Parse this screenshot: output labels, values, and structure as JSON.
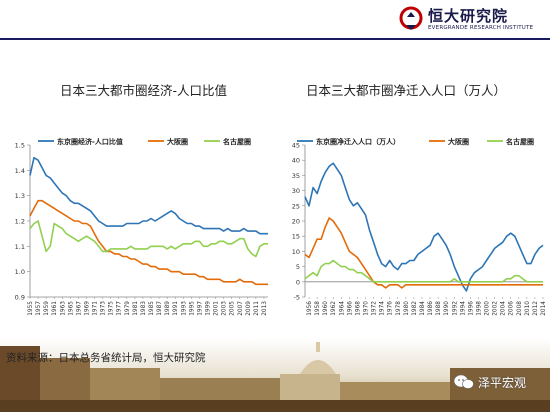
{
  "header": {
    "logo_cn": "恒大研究院",
    "logo_en": "EVERGRANDE RESEARCH INSTITUTE",
    "rule_color": "#1a1a5e"
  },
  "source_text": "资料来源：日本总务省统计局，恒大研究院",
  "watermark_text": "泽平宏观",
  "chart_data": [
    {
      "type": "line",
      "title": "日本三大都市圈经济-人口比值",
      "x": [
        1955,
        1956,
        1957,
        1958,
        1959,
        1960,
        1961,
        1962,
        1963,
        1964,
        1965,
        1966,
        1967,
        1968,
        1969,
        1970,
        1971,
        1972,
        1973,
        1974,
        1975,
        1976,
        1977,
        1978,
        1979,
        1980,
        1981,
        1982,
        1983,
        1984,
        1985,
        1986,
        1987,
        1988,
        1989,
        1990,
        1991,
        1992,
        1993,
        1994,
        1995,
        1996,
        1997,
        1998,
        1999,
        2000,
        2001,
        2002,
        2003,
        2004,
        2005,
        2006,
        2007,
        2008,
        2009,
        2010,
        2011,
        2012,
        2013,
        2014
      ],
      "xticks": [
        "1955",
        "1957",
        "1959",
        "1961",
        "1963",
        "1965",
        "1967",
        "1969",
        "1971",
        "1973",
        "1975",
        "1977",
        "1979",
        "1981",
        "1983",
        "1985",
        "1987",
        "1989",
        "1991",
        "1993",
        "1995",
        "1997",
        "1999",
        "2001",
        "2003",
        "2005",
        "2007",
        "2009",
        "2011",
        "2013"
      ],
      "yticks": [
        "0.9",
        "1.0",
        "1.1",
        "1.2",
        "1.3",
        "1.4",
        "1.5"
      ],
      "ylim": [
        0.9,
        1.5
      ],
      "grid": false,
      "legend": "top",
      "series": [
        {
          "name": "东京圈经济-人口比值",
          "color": "#2e75b6",
          "values": [
            1.38,
            1.45,
            1.44,
            1.41,
            1.38,
            1.37,
            1.35,
            1.33,
            1.31,
            1.3,
            1.28,
            1.27,
            1.27,
            1.26,
            1.25,
            1.24,
            1.22,
            1.2,
            1.19,
            1.18,
            1.18,
            1.18,
            1.18,
            1.18,
            1.19,
            1.19,
            1.19,
            1.19,
            1.2,
            1.2,
            1.21,
            1.2,
            1.21,
            1.22,
            1.23,
            1.24,
            1.23,
            1.21,
            1.2,
            1.19,
            1.19,
            1.18,
            1.18,
            1.17,
            1.17,
            1.17,
            1.17,
            1.17,
            1.16,
            1.17,
            1.16,
            1.16,
            1.16,
            1.17,
            1.16,
            1.16,
            1.16,
            1.15,
            1.15,
            1.15
          ]
        },
        {
          "name": "大阪圈",
          "color": "#e36c0a",
          "values": [
            1.22,
            1.25,
            1.28,
            1.28,
            1.27,
            1.26,
            1.25,
            1.24,
            1.23,
            1.22,
            1.21,
            1.2,
            1.2,
            1.19,
            1.19,
            1.18,
            1.15,
            1.12,
            1.1,
            1.08,
            1.08,
            1.07,
            1.07,
            1.06,
            1.06,
            1.05,
            1.05,
            1.04,
            1.03,
            1.03,
            1.02,
            1.02,
            1.01,
            1.01,
            1.01,
            1.0,
            1.0,
            1.0,
            0.99,
            0.99,
            0.99,
            0.99,
            0.98,
            0.98,
            0.97,
            0.97,
            0.97,
            0.97,
            0.96,
            0.96,
            0.96,
            0.96,
            0.97,
            0.96,
            0.96,
            0.96,
            0.95,
            0.95,
            0.95,
            0.95
          ]
        },
        {
          "name": "名古屋圈",
          "color": "#92d050",
          "values": [
            1.17,
            1.19,
            1.2,
            1.14,
            1.08,
            1.1,
            1.19,
            1.18,
            1.17,
            1.15,
            1.14,
            1.13,
            1.12,
            1.13,
            1.14,
            1.13,
            1.12,
            1.1,
            1.08,
            1.08,
            1.09,
            1.09,
            1.09,
            1.09,
            1.09,
            1.1,
            1.09,
            1.09,
            1.09,
            1.09,
            1.1,
            1.1,
            1.1,
            1.1,
            1.09,
            1.1,
            1.09,
            1.1,
            1.11,
            1.11,
            1.11,
            1.12,
            1.12,
            1.1,
            1.1,
            1.11,
            1.11,
            1.12,
            1.12,
            1.11,
            1.11,
            1.12,
            1.13,
            1.13,
            1.09,
            1.07,
            1.06,
            1.1,
            1.11,
            1.11
          ]
        }
      ]
    },
    {
      "type": "line",
      "title": "日本三大都市圈净迁入人口（万人）",
      "x": [
        1955,
        1956,
        1957,
        1958,
        1959,
        1960,
        1961,
        1962,
        1963,
        1964,
        1965,
        1966,
        1967,
        1968,
        1969,
        1970,
        1971,
        1972,
        1973,
        1974,
        1975,
        1976,
        1977,
        1978,
        1979,
        1980,
        1981,
        1982,
        1983,
        1984,
        1985,
        1986,
        1987,
        1988,
        1989,
        1990,
        1991,
        1992,
        1993,
        1994,
        1995,
        1996,
        1997,
        1998,
        1999,
        2000,
        2001,
        2002,
        2003,
        2004,
        2005,
        2006,
        2007,
        2008,
        2009,
        2010,
        2011,
        2012,
        2013,
        2014
      ],
      "xticks": [
        "1956",
        "1958",
        "1960",
        "1962",
        "1964",
        "1966",
        "1968",
        "1970",
        "1972",
        "1974",
        "1976",
        "1978",
        "1980",
        "1982",
        "1984",
        "1986",
        "1988",
        "1990",
        "1992",
        "1994",
        "1996",
        "1998",
        "2000",
        "2002",
        "2004",
        "2006",
        "2008",
        "2010",
        "2012",
        "2014"
      ],
      "yticks": [
        "-5",
        "0",
        "5",
        "10",
        "15",
        "20",
        "25",
        "30",
        "35",
        "40",
        "45"
      ],
      "ylim": [
        -5,
        45
      ],
      "grid": false,
      "legend": "top",
      "series": [
        {
          "name": "东京圈净迁入人口（万人）",
          "color": "#2e75b6",
          "values": [
            28,
            25,
            31,
            29,
            33,
            36,
            38,
            39,
            37,
            35,
            31,
            27,
            25,
            26,
            24,
            22,
            17,
            13,
            9,
            6,
            5,
            7,
            5,
            4,
            6,
            6,
            7,
            7,
            9,
            10,
            11,
            12,
            15,
            16,
            14,
            12,
            9,
            5,
            2,
            -1,
            -3,
            1,
            3,
            4,
            5,
            7,
            9,
            11,
            12,
            13,
            15,
            16,
            15,
            12,
            9,
            6,
            6,
            9,
            11,
            12
          ]
        },
        {
          "name": "大阪圈",
          "color": "#e36c0a",
          "values": [
            9,
            8,
            11,
            14,
            14,
            18,
            21,
            20,
            18,
            16,
            13,
            10,
            9,
            8,
            6,
            4,
            2,
            0,
            -1,
            -1,
            -2,
            -1,
            -1,
            -1,
            -2,
            -1,
            -1,
            -1,
            -1,
            -1,
            -1,
            -1,
            -1,
            -1,
            -1,
            -1,
            -1,
            -1,
            -1,
            -1,
            -1,
            -1,
            -1,
            -1,
            -1,
            -1,
            -1,
            -1,
            -1,
            -1,
            -1,
            -1,
            -1,
            -1,
            -1,
            -1,
            -1,
            -1,
            -1,
            -1
          ]
        },
        {
          "name": "名古屋圈",
          "color": "#92d050",
          "values": [
            1,
            2,
            3,
            2,
            5,
            6,
            6,
            7,
            6,
            5,
            5,
            4,
            4,
            3,
            3,
            2,
            1,
            0,
            0,
            0,
            0,
            0,
            0,
            0,
            0,
            0,
            0,
            0,
            0,
            0,
            0,
            0,
            0,
            0,
            0,
            0,
            0,
            1,
            0,
            0,
            0,
            0,
            0,
            0,
            0,
            0,
            0,
            0,
            0,
            0,
            1,
            1,
            2,
            2,
            1,
            0,
            0,
            0,
            0,
            0
          ]
        }
      ]
    }
  ]
}
